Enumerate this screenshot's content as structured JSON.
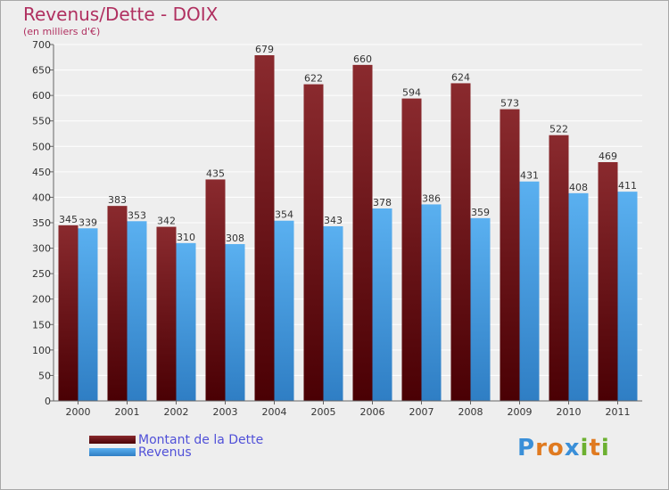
{
  "title": "Revenus/Dette - DOIX",
  "subtitle": "(en milliers d'€)",
  "logo": {
    "letters": [
      {
        "ch": "P",
        "color": "#3a8fd8"
      },
      {
        "ch": "r",
        "color": "#e07a20"
      },
      {
        "ch": "o",
        "color": "#e07a20"
      },
      {
        "ch": "x",
        "color": "#3a8fd8"
      },
      {
        "ch": "i",
        "color": "#6cb030"
      },
      {
        "ch": "t",
        "color": "#e07a20"
      },
      {
        "ch": "i",
        "color": "#6cb030"
      }
    ]
  },
  "colors": {
    "dette": "#7a1a1e",
    "revenus": "#4aa3e8",
    "grid": "#ffffff",
    "plot_bg": "#eeeeee"
  },
  "chart_data": {
    "type": "bar",
    "categories": [
      "2000",
      "2001",
      "2002",
      "2003",
      "2004",
      "2005",
      "2006",
      "2007",
      "2008",
      "2009",
      "2010",
      "2011"
    ],
    "series": [
      {
        "name": "Montant de la Dette",
        "values": [
          345,
          383,
          342,
          435,
          679,
          622,
          660,
          594,
          624,
          573,
          522,
          469
        ]
      },
      {
        "name": "Revenus",
        "values": [
          339,
          353,
          310,
          308,
          354,
          343,
          378,
          386,
          359,
          431,
          408,
          411
        ]
      }
    ],
    "ylim": [
      0,
      700
    ],
    "yticks": [
      0,
      50,
      100,
      150,
      200,
      250,
      300,
      350,
      400,
      450,
      500,
      550,
      600,
      650,
      700
    ],
    "grid": true,
    "legend": "bottom-left"
  }
}
